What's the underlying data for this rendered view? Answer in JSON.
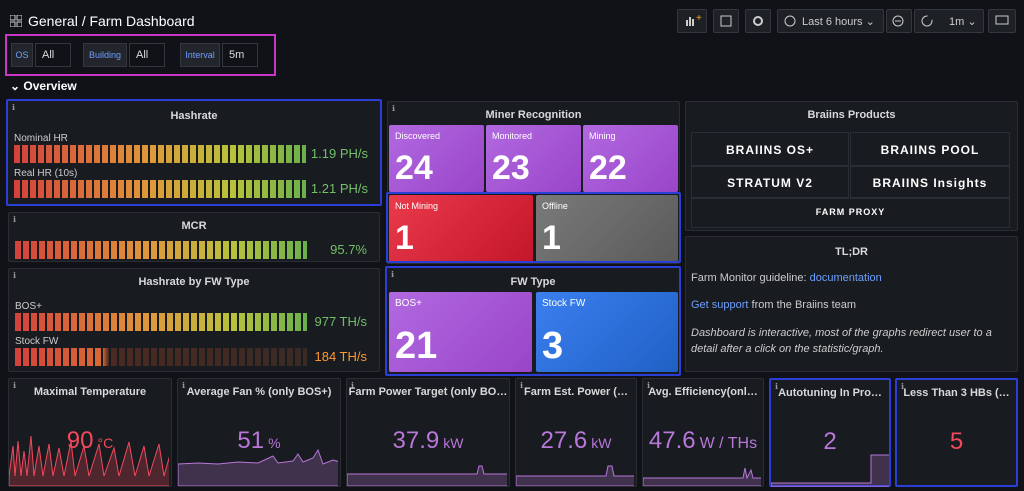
{
  "header": {
    "breadcrumb": [
      "General",
      "Farm Dashboard"
    ],
    "time_range": "Last 6 hours",
    "refresh": "1m"
  },
  "variables": [
    {
      "label": "OS",
      "value": "All"
    },
    {
      "label": "Building",
      "value": "All"
    },
    {
      "label": "Interval",
      "value": "5m"
    }
  ],
  "row_title": "Overview",
  "hashrate": {
    "title": "Hashrate",
    "gauges": [
      {
        "label": "Nominal HR",
        "value": "1.19 PH/s"
      },
      {
        "label": "Real HR (10s)",
        "value": "1.21 PH/s"
      }
    ]
  },
  "mcr": {
    "title": "MCR",
    "value": "95.7%"
  },
  "hashrate_by_fw": {
    "title": "Hashrate by FW Type",
    "gauges": [
      {
        "label": "BOS+",
        "value": "977 TH/s"
      },
      {
        "label": "Stock FW",
        "value": "184 TH/s"
      }
    ]
  },
  "miner_recognition": {
    "title": "Miner Recognition",
    "tiles": [
      {
        "label": "Discovered",
        "value": 24
      },
      {
        "label": "Monitored",
        "value": 23
      },
      {
        "label": "Mining",
        "value": 22
      },
      {
        "label": "Not Mining",
        "value": 1
      },
      {
        "label": "Offline",
        "value": 1
      }
    ]
  },
  "fw_type": {
    "title": "FW Type",
    "tiles": [
      {
        "label": "BOS+",
        "value": 21
      },
      {
        "label": "Stock FW",
        "value": 3
      }
    ]
  },
  "braiins_products": {
    "title": "Braiins Products",
    "logos": [
      "BRAIINS OS+",
      "BRAIINS POOL",
      "STRATUM V2",
      "BRAIINS Insights",
      "FARM PROXY"
    ]
  },
  "tldr": {
    "title": "TL;DR",
    "guideline_text": "Farm Monitor guideline:",
    "guideline_link": "documentation",
    "support_link": "Get support",
    "support_text": "from the Braiins team",
    "note": "Dashboard is interactive, most of the graphs redirect user to a detail after a click on the statistic/graph."
  },
  "stats": [
    {
      "title": "Maximal Temperature",
      "value": "90",
      "unit": "°C"
    },
    {
      "title": "Average Fan % (only BOS+)",
      "value": "51",
      "unit": "%"
    },
    {
      "title": "Farm Power Target (only BO…",
      "value": "37.9",
      "unit": "kW"
    },
    {
      "title": "Farm Est. Power (…",
      "value": "27.6",
      "unit": "kW"
    },
    {
      "title": "Avg. Efficiency(onl…",
      "value": "47.6",
      "unit": "W / THs"
    },
    {
      "title": "Autotuning In Pro…",
      "value": "2",
      "unit": null
    },
    {
      "title": "Less Than 3 HBs (…",
      "value": "5",
      "unit": null
    }
  ]
}
